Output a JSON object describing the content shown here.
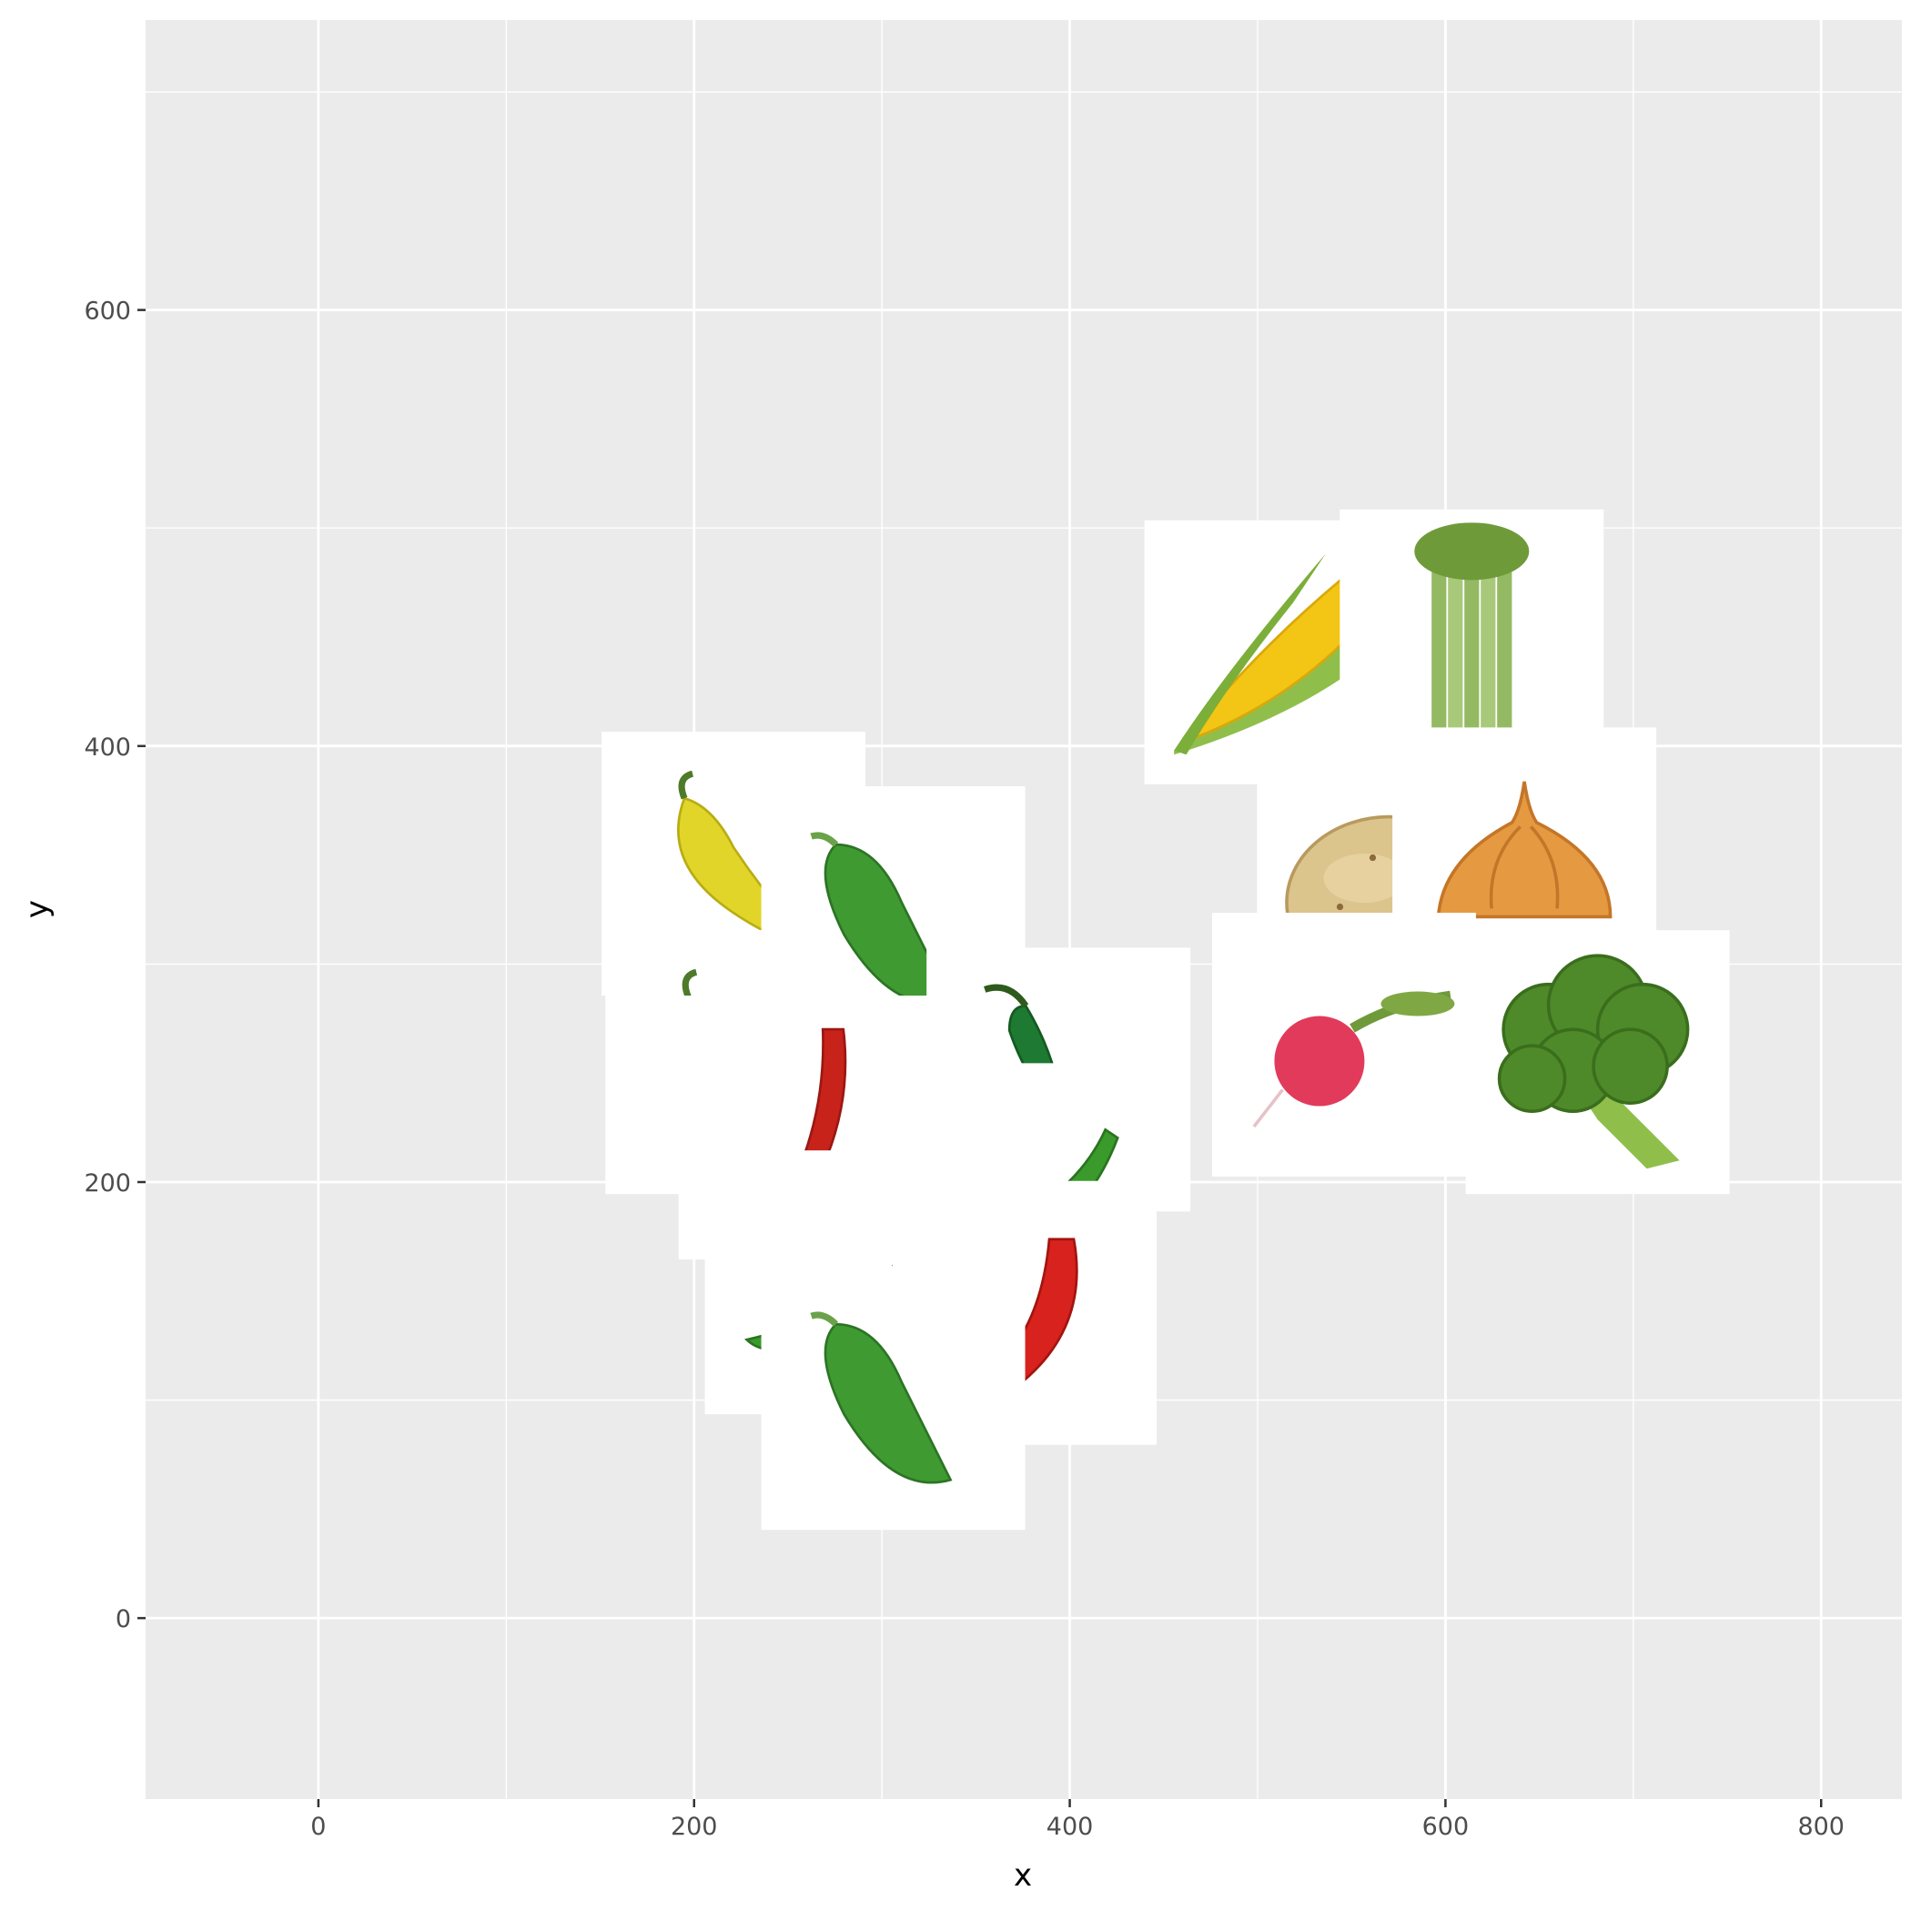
{
  "chart_data": {
    "type": "scatter",
    "marker": "vegetable-image",
    "xlabel": "x",
    "ylabel": "y",
    "xlim": [
      -92,
      843
    ],
    "ylim": [
      -83,
      733
    ],
    "x_ticks": [
      0,
      200,
      400,
      600,
      800
    ],
    "x_tick_labels": [
      "0",
      "200",
      "400",
      "600",
      "800"
    ],
    "y_ticks": [
      0,
      200,
      400,
      600
    ],
    "y_tick_labels": [
      "0",
      "200",
      "400",
      "600"
    ],
    "grid": true,
    "colors": {
      "panel_background": "#ebebeb",
      "grid": "#ffffff",
      "tick": "#333333",
      "tile_background": "#ffffff"
    },
    "points": [
      {
        "x": 570,
        "y": 330,
        "image": "potato-image"
      },
      {
        "x": 510,
        "y": 443,
        "image": "corn-image"
      },
      {
        "x": 614,
        "y": 448,
        "image": "celery-image"
      },
      {
        "x": 642,
        "y": 348,
        "image": "onion-image"
      },
      {
        "x": 681,
        "y": 255,
        "image": "broccoli-image"
      },
      {
        "x": 546,
        "y": 263,
        "image": "radish-image"
      },
      {
        "x": 221,
        "y": 346,
        "image": "yellow-pepper-image"
      },
      {
        "x": 223,
        "y": 255,
        "image": "yellow-pepper-image"
      },
      {
        "x": 306,
        "y": 321,
        "image": "green-jalapeno-image"
      },
      {
        "x": 262,
        "y": 225,
        "image": "red-chili-image"
      },
      {
        "x": 394,
        "y": 247,
        "image": "dark-green-chili-image"
      },
      {
        "x": 371,
        "y": 194,
        "image": "green-chili-image"
      },
      {
        "x": 276,
        "y": 154,
        "image": "green-chili-image"
      },
      {
        "x": 376,
        "y": 140,
        "image": "red-pepper-image"
      },
      {
        "x": 306,
        "y": 101,
        "image": "green-jalapeno-image"
      }
    ]
  }
}
